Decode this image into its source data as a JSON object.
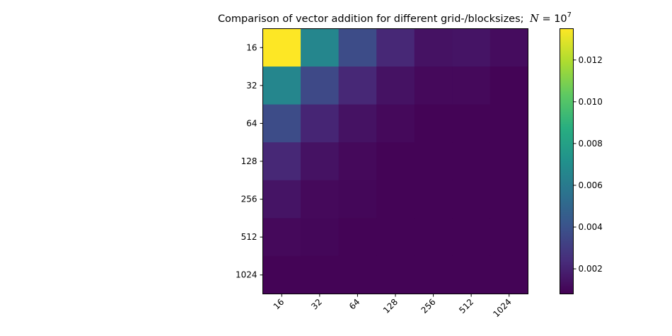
{
  "chart_data": {
    "type": "heatmap",
    "title": "Comparison of vector addition for different grid-/blocksizes;",
    "title_math": {
      "lhs": "N",
      "eq": " = 10",
      "exp": "7"
    },
    "x_ticks": [
      "16",
      "32",
      "64",
      "128",
      "256",
      "512",
      "1024"
    ],
    "y_ticks": [
      "16",
      "32",
      "64",
      "128",
      "256",
      "512",
      "1024"
    ],
    "values": [
      [
        0.0135,
        0.0066,
        0.0037,
        0.0022,
        0.0014,
        0.0015,
        0.0012
      ],
      [
        0.0066,
        0.0036,
        0.0022,
        0.0014,
        0.0011,
        0.0011,
        0.0009
      ],
      [
        0.0037,
        0.0021,
        0.0014,
        0.0011,
        0.0009,
        0.0009,
        0.0009
      ],
      [
        0.0022,
        0.0014,
        0.0011,
        0.0009,
        0.0009,
        0.0009,
        0.0009
      ],
      [
        0.0015,
        0.0011,
        0.001,
        0.0009,
        0.0009,
        0.0009,
        0.0009
      ],
      [
        0.0011,
        0.001,
        0.0009,
        0.0009,
        0.0009,
        0.0009,
        0.0009
      ],
      [
        0.0009,
        0.0009,
        0.0009,
        0.0009,
        0.0009,
        0.0009,
        0.0009
      ]
    ],
    "colormap": "viridis",
    "colorbar": {
      "range": [
        0.0008,
        0.0135
      ],
      "ticks": [
        0.002,
        0.004,
        0.006,
        0.008,
        0.01,
        0.012
      ],
      "tick_labels": [
        "0.002",
        "0.004",
        "0.006",
        "0.008",
        "0.010",
        "0.012"
      ]
    },
    "xlabel": "",
    "ylabel": ""
  }
}
